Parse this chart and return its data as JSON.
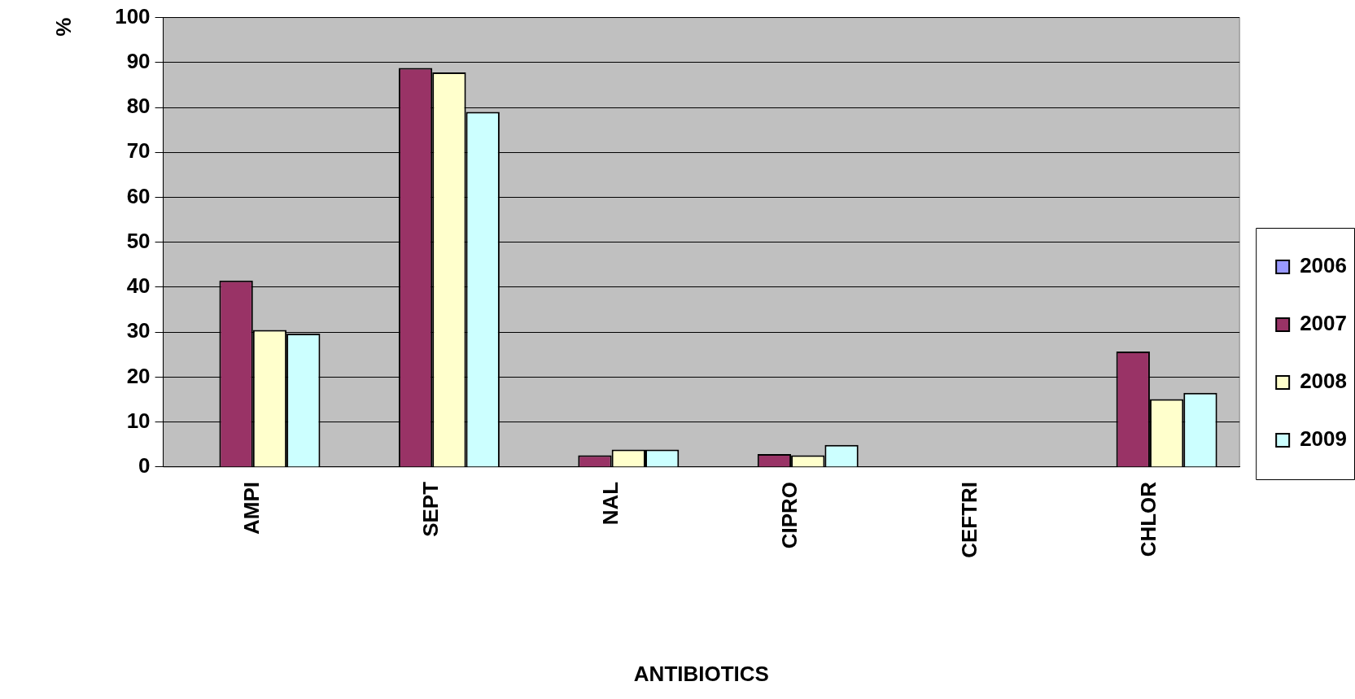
{
  "chart_data": {
    "type": "bar",
    "xlabel": "ANTIBIOTICS",
    "ylabel": "%",
    "categories": [
      "AMPI",
      "SEPT",
      "NAL",
      "CIPRO",
      "CEFTRI",
      "CHLOR"
    ],
    "series": [
      {
        "name": "2006",
        "color": "#9999ff",
        "values": [
          0,
          0,
          0,
          0,
          0,
          0
        ]
      },
      {
        "name": "2007",
        "color": "#993366",
        "values": [
          41.5,
          88.8,
          2.6,
          2.9,
          0,
          25.7
        ]
      },
      {
        "name": "2008",
        "color": "#ffffcc",
        "values": [
          30.5,
          87.8,
          3.9,
          2.6,
          0,
          15.1
        ]
      },
      {
        "name": "2009",
        "color": "#ccffff",
        "values": [
          29.7,
          79,
          3.9,
          4.9,
          0,
          16.5
        ]
      }
    ],
    "ylim": [
      0,
      100
    ],
    "yticks": [
      0,
      10,
      20,
      30,
      40,
      50,
      60,
      70,
      80,
      90,
      100
    ],
    "grid": "y",
    "legend": "right"
  }
}
